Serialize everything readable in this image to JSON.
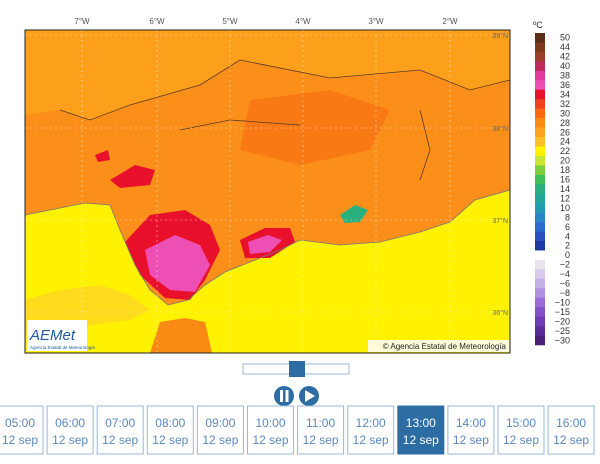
{
  "map": {
    "lon_labels": [
      "7°W",
      "6°W",
      "5°W",
      "4°W",
      "3°W",
      "2°W"
    ],
    "lat_labels": [
      "39°N",
      "38°N",
      "37°N",
      "36°N"
    ],
    "copyright": "© Agencia Estatal de Meteorología",
    "logo": {
      "name": "AEMet",
      "subtitle": "Agencia Estatal de Meteorología"
    }
  },
  "legend": {
    "unit": "ºC",
    "items": [
      {
        "label": "50",
        "color": "#5a2d17"
      },
      {
        "label": "44",
        "color": "#7d3a1c"
      },
      {
        "label": "42",
        "color": "#9b3f2a"
      },
      {
        "label": "40",
        "color": "#c02a5a"
      },
      {
        "label": "38",
        "color": "#e23a9c"
      },
      {
        "label": "36",
        "color": "#ee4fb4"
      },
      {
        "label": "34",
        "color": "#e8102a"
      },
      {
        "label": "32",
        "color": "#f0401c"
      },
      {
        "label": "30",
        "color": "#f86a10"
      },
      {
        "label": "28",
        "color": "#fb8a14"
      },
      {
        "label": "26",
        "color": "#fda21c"
      },
      {
        "label": "24",
        "color": "#fec02a"
      },
      {
        "label": "22",
        "color": "#fff200"
      },
      {
        "label": "20",
        "color": "#c8e632"
      },
      {
        "label": "18",
        "color": "#7ccf3c"
      },
      {
        "label": "16",
        "color": "#3fbf5a"
      },
      {
        "label": "14",
        "color": "#2ab07e"
      },
      {
        "label": "12",
        "color": "#22a89a"
      },
      {
        "label": "10",
        "color": "#1e9cb2"
      },
      {
        "label": "8",
        "color": "#2a86c8"
      },
      {
        "label": "6",
        "color": "#2c6cd0"
      },
      {
        "label": "4",
        "color": "#2a50c0"
      },
      {
        "label": "2",
        "color": "#1e3aa0"
      },
      {
        "label": "0",
        "color": "#ffffff"
      },
      {
        "label": "−2",
        "color": "#e8e4ee"
      },
      {
        "label": "−4",
        "color": "#d8ccec"
      },
      {
        "label": "−6",
        "color": "#c4b0e6"
      },
      {
        "label": "−8",
        "color": "#b090e0"
      },
      {
        "label": "−10",
        "color": "#9a6cd6"
      },
      {
        "label": "−15",
        "color": "#8450c8"
      },
      {
        "label": "−20",
        "color": "#6e3cb4"
      },
      {
        "label": "−25",
        "color": "#5a2c98"
      },
      {
        "label": "−30",
        "color": "#48207a"
      }
    ]
  },
  "times": [
    {
      "time": "05:00",
      "date": "12 sep"
    },
    {
      "time": "06:00",
      "date": "12 sep"
    },
    {
      "time": "07:00",
      "date": "12 sep"
    },
    {
      "time": "08:00",
      "date": "12 sep"
    },
    {
      "time": "09:00",
      "date": "12 sep"
    },
    {
      "time": "10:00",
      "date": "12 sep"
    },
    {
      "time": "11:00",
      "date": "12 sep"
    },
    {
      "time": "12:00",
      "date": "12 sep"
    },
    {
      "time": "13:00",
      "date": "12 sep"
    },
    {
      "time": "14:00",
      "date": "12 sep"
    },
    {
      "time": "15:00",
      "date": "12 sep"
    },
    {
      "time": "16:00",
      "date": "12 sep"
    }
  ],
  "selected_time": "13:00"
}
